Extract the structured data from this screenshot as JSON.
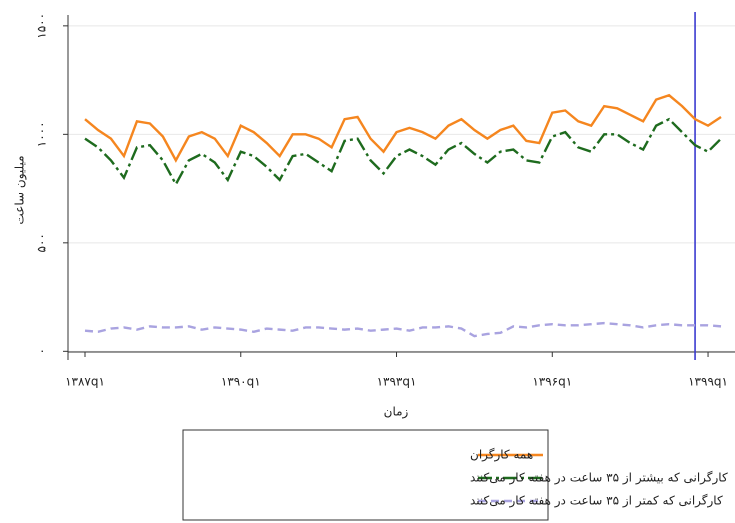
{
  "chart_data": {
    "type": "line",
    "x_label": "زمان",
    "y_label": "میلیون ساعت",
    "categories": [
      "۱۳۸۷q۱",
      null,
      null,
      null,
      null,
      null,
      null,
      null,
      null,
      null,
      null,
      null,
      "۱۳۹۰q۱",
      null,
      null,
      null,
      null,
      null,
      null,
      null,
      null,
      null,
      null,
      null,
      "۱۳۹۳q۱",
      null,
      null,
      null,
      null,
      null,
      null,
      null,
      null,
      null,
      null,
      null,
      "۱۳۹۶q۱",
      null,
      null,
      null,
      null,
      null,
      null,
      null,
      null,
      null,
      null,
      null,
      "۱۳۹۹q۱",
      null
    ],
    "series": [
      {
        "name": "همه کارگران",
        "color": "#f5861f",
        "dash": "solid",
        "values": [
          1070,
          1020,
          980,
          900,
          1060,
          1050,
          990,
          880,
          990,
          1010,
          980,
          900,
          1040,
          1010,
          960,
          900,
          1000,
          1000,
          980,
          940,
          1070,
          1080,
          980,
          920,
          1010,
          1030,
          1010,
          980,
          1040,
          1070,
          1020,
          980,
          1020,
          1040,
          970,
          960,
          1100,
          1110,
          1060,
          1040,
          1130,
          1120,
          1090,
          1060,
          1160,
          1180,
          1130,
          1070,
          1040,
          1080
        ]
      },
      {
        "name": "کارگرانی که بیشتر از ۳۵ ساعت در هفته کار می‌کنند",
        "color": "#1e6b1e",
        "dash": "dashdot",
        "values": [
          980,
          940,
          880,
          800,
          940,
          950,
          880,
          770,
          880,
          910,
          870,
          790,
          920,
          900,
          850,
          790,
          900,
          910,
          870,
          830,
          970,
          980,
          880,
          820,
          900,
          930,
          900,
          860,
          930,
          960,
          910,
          870,
          920,
          930,
          880,
          870,
          990,
          1010,
          940,
          920,
          1000,
          1000,
          960,
          930,
          1040,
          1070,
          1010,
          950,
          920,
          980
        ]
      },
      {
        "name": "کارگرانی که کمتر از ۳۵ ساعت در هفته کار می‌کنند",
        "color": "#a9a3e0",
        "dash": "dashed",
        "values": [
          95,
          90,
          105,
          110,
          100,
          115,
          110,
          110,
          115,
          100,
          110,
          105,
          100,
          90,
          105,
          100,
          95,
          110,
          110,
          105,
          100,
          105,
          95,
          100,
          105,
          95,
          110,
          110,
          115,
          105,
          70,
          80,
          85,
          115,
          110,
          120,
          125,
          120,
          120,
          125,
          130,
          125,
          120,
          110,
          120,
          125,
          120,
          120,
          120,
          115
        ]
      }
    ],
    "vline": {
      "category_index": 47,
      "color": "#3a3ad0"
    },
    "ylim": [
      -40,
      1550
    ],
    "yticks": [
      {
        "value": 0,
        "label": "۰"
      },
      {
        "value": 500,
        "label": "۵۰۰"
      },
      {
        "value": 1000,
        "label": "۱۰۰۰"
      },
      {
        "value": 1500,
        "label": "۱۵۰۰"
      }
    ],
    "grid": true,
    "legend": "bottom"
  }
}
